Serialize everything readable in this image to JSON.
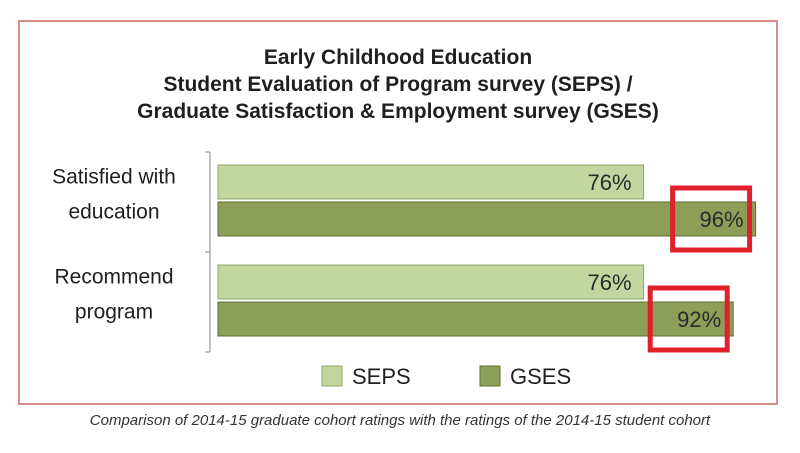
{
  "chart_data": {
    "type": "bar",
    "orientation": "horizontal",
    "title_lines": [
      "Early Childhood Education",
      "Student Evaluation of Program survey (SEPS) /",
      "Graduate Satisfaction & Employment survey (GSES)"
    ],
    "categories": [
      "Satisfied with education",
      "Recommend program"
    ],
    "category_label_lines": [
      [
        "Satisfied with",
        "education"
      ],
      [
        "Recommend",
        "program"
      ]
    ],
    "series": [
      {
        "name": "SEPS",
        "values": [
          76,
          76
        ],
        "labels": [
          "76%",
          "76%"
        ],
        "color": "#c4d6a0"
      },
      {
        "name": "GSES",
        "values": [
          96,
          92
        ],
        "labels": [
          "96%",
          "92%"
        ],
        "color": "#8c9e58"
      }
    ],
    "xlim": [
      0,
      100
    ],
    "grid": false,
    "legend_position": "bottom",
    "highlighted": [
      "96%",
      "92%"
    ],
    "highlight_color": "#e0202a",
    "caption": "Comparison of 2014-15 graduate cohort ratings with the ratings of the 2014-15 student cohort"
  }
}
